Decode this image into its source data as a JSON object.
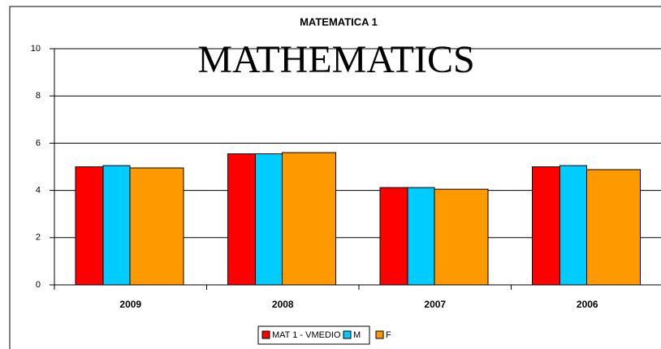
{
  "chart_data": {
    "type": "bar",
    "title": "MATEMATICA 1",
    "annotation": "MATHEMATICS",
    "categories": [
      "2009",
      "2008",
      "2007",
      "2006"
    ],
    "series": [
      {
        "name": "MAT 1 - VMEDIO",
        "color": "#ff0000",
        "values": [
          5.0,
          5.55,
          4.12,
          5.0
        ]
      },
      {
        "name": "M",
        "color": "#00ccff",
        "values": [
          5.05,
          5.55,
          4.12,
          5.05
        ]
      },
      {
        "name": "F",
        "color": "#ff9900",
        "values": [
          4.95,
          5.6,
          4.05,
          4.88
        ]
      }
    ],
    "ylim": [
      0,
      10
    ],
    "yticks": [
      0,
      2,
      4,
      6,
      8,
      10
    ],
    "grid": true,
    "legend": "bottom"
  }
}
